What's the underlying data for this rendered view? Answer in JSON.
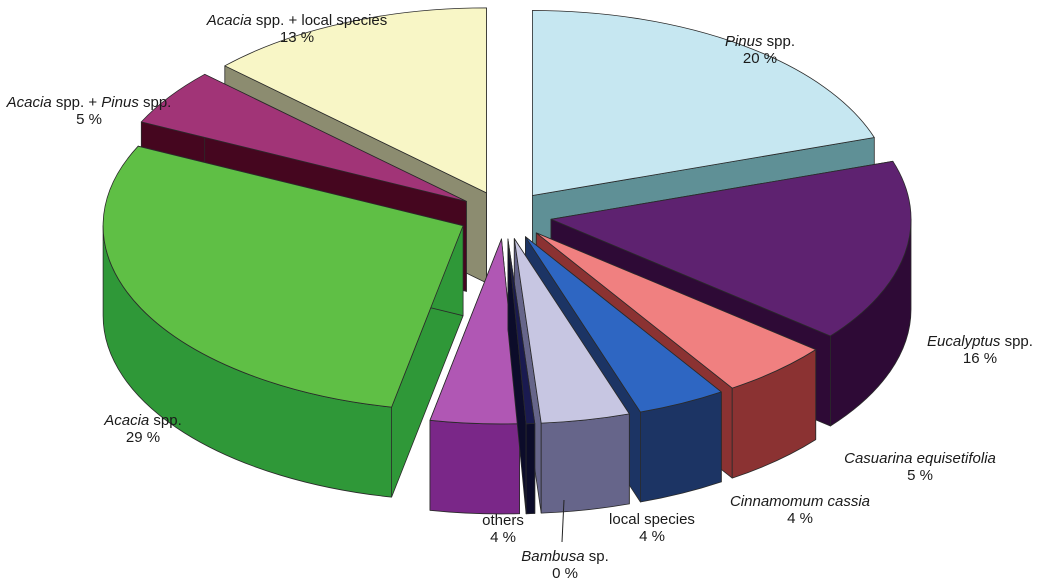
{
  "chart_data": {
    "type": "pie",
    "style": "exploded 3D pie",
    "slices": [
      {
        "key": "pinus",
        "parts": [
          {
            "text": "Pinus",
            "italic": true
          },
          {
            "text": " spp.",
            "italic": false
          }
        ],
        "value": 20,
        "value_label": "20 %",
        "colors": {
          "top": "#c6e7f1",
          "side": "#5f9096"
        }
      },
      {
        "key": "eucalyptus",
        "parts": [
          {
            "text": "Eucalyptus",
            "italic": true
          },
          {
            "text": " spp.",
            "italic": false
          }
        ],
        "value": 16,
        "value_label": "16 %",
        "colors": {
          "top": "#5e2270",
          "side": "#2e0a36"
        }
      },
      {
        "key": "casuarina",
        "parts": [
          {
            "text": "Casuarina equisetifolia",
            "italic": true
          }
        ],
        "value": 5,
        "value_label": "5 %",
        "colors": {
          "top": "#f08080",
          "side": "#8b3232"
        }
      },
      {
        "key": "cinnamomum",
        "parts": [
          {
            "text": "Cinnamomum cassia",
            "italic": true
          }
        ],
        "value": 4,
        "value_label": "4 %",
        "colors": {
          "top": "#2e66c2",
          "side": "#1c3464"
        }
      },
      {
        "key": "local",
        "parts": [
          {
            "text": "local species",
            "italic": false
          }
        ],
        "value": 4,
        "value_label": "4 %",
        "colors": {
          "top": "#c7c6e2",
          "side": "#66658a"
        }
      },
      {
        "key": "bambusa",
        "parts": [
          {
            "text": "Bambusa",
            "italic": true
          },
          {
            "text": " sp.",
            "italic": false
          }
        ],
        "value": 0,
        "value_label": "0 %",
        "colors": {
          "top": "#1a1a50",
          "side": "#0c0c2a"
        }
      },
      {
        "key": "others",
        "parts": [
          {
            "text": "others",
            "italic": false
          }
        ],
        "value": 4,
        "value_label": "4 %",
        "colors": {
          "top": "#b057b4",
          "side": "#7a2788"
        }
      },
      {
        "key": "acacia",
        "parts": [
          {
            "text": "Acacia",
            "italic": true
          },
          {
            "text": " spp.",
            "italic": false
          }
        ],
        "value": 29,
        "value_label": "29 %",
        "colors": {
          "top": "#5fbf45",
          "side": "#2f9838"
        }
      },
      {
        "key": "acacia-pinus",
        "parts": [
          {
            "text": "Acacia",
            "italic": true
          },
          {
            "text": " spp. + ",
            "italic": false
          },
          {
            "text": "Pinus",
            "italic": true
          },
          {
            "text": " spp.",
            "italic": false
          }
        ],
        "value": 5,
        "value_label": "5 %",
        "colors": {
          "top": "#a13477",
          "side": "#45061f"
        }
      },
      {
        "key": "acacia-local",
        "parts": [
          {
            "text": "Acacia",
            "italic": true
          },
          {
            "text": " spp. + local species",
            "italic": false
          }
        ],
        "value": 13,
        "value_label": "13 %",
        "colors": {
          "top": "#f8f6c6",
          "side": "#8c8c70"
        }
      }
    ]
  }
}
